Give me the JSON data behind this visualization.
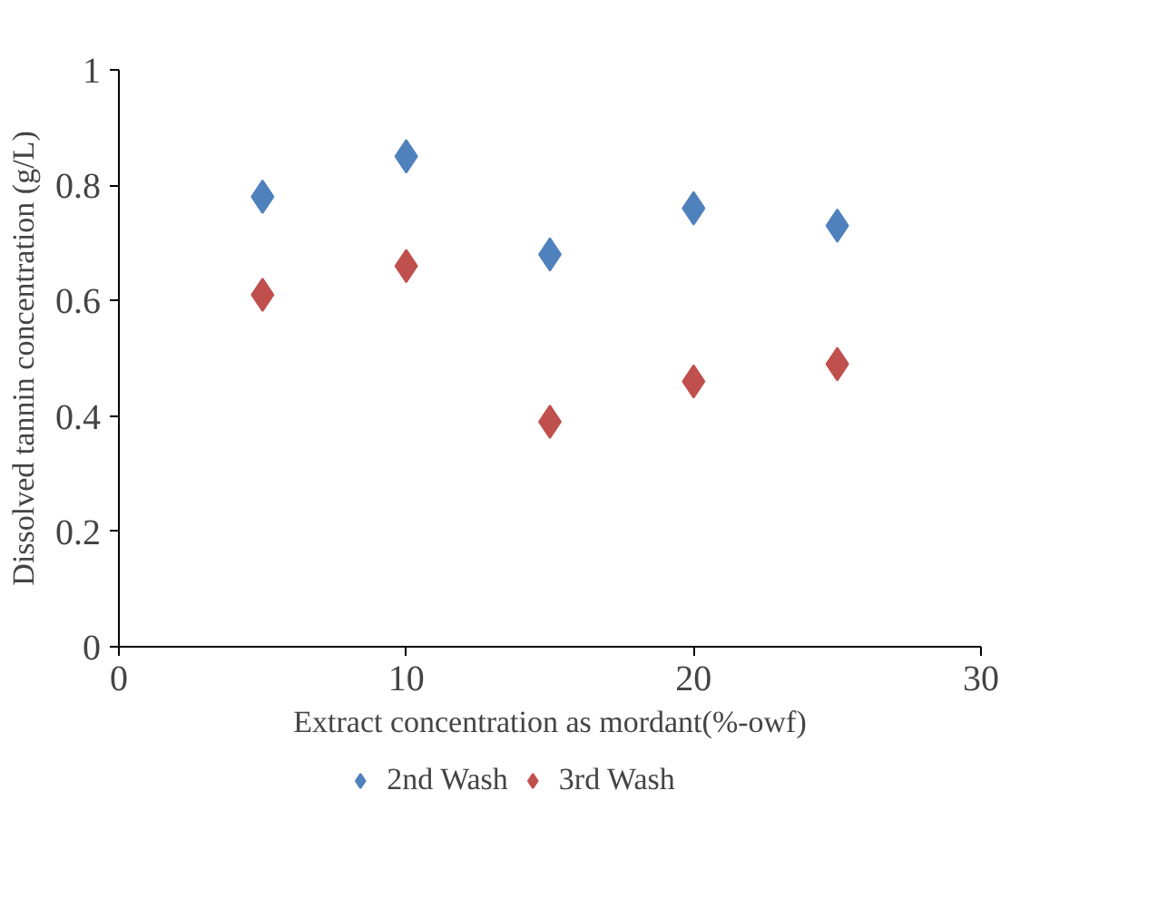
{
  "chart_data": {
    "type": "scatter",
    "xlabel": "Extract concentration as mordant(%-owf)",
    "ylabel": "Dissolved tannin concentration (g/L)",
    "x": [
      5,
      10,
      15,
      20,
      25
    ],
    "series": [
      {
        "name": "2nd Wash",
        "color": "#4f81bd",
        "values": [
          0.78,
          0.85,
          0.68,
          0.76,
          0.73
        ]
      },
      {
        "name": "3rd Wash",
        "color": "#c0504d",
        "values": [
          0.61,
          0.66,
          0.39,
          0.46,
          0.49
        ]
      }
    ],
    "xlim": [
      0,
      30
    ],
    "xticks": [
      0,
      10,
      20,
      30
    ],
    "ylim": [
      0,
      1
    ],
    "yticks": [
      0,
      0.2,
      0.4,
      0.6,
      0.8,
      1
    ],
    "grid": false,
    "legend": "bottom",
    "marker": "diamond"
  }
}
